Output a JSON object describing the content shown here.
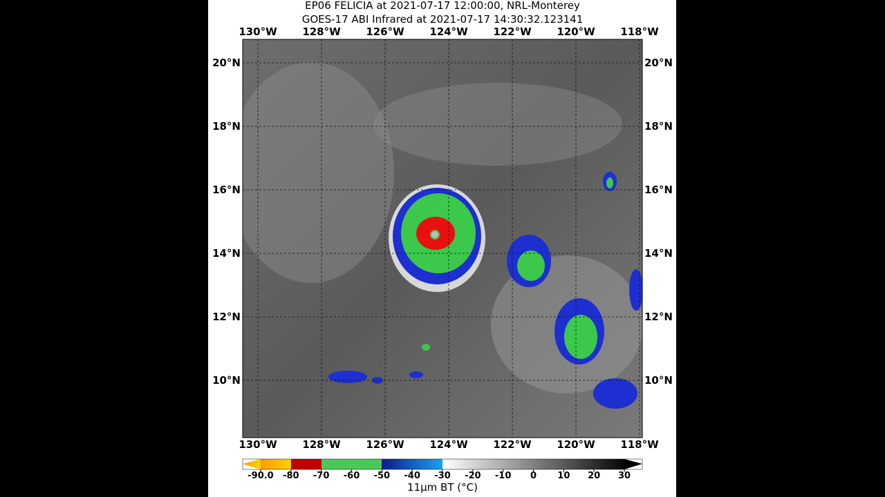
{
  "title": [
    "EP06 FELICIA at 2021-07-17 12:00:00, NRL-Monterey",
    "GOES-17 ABI Infrared at 2021-07-17 14:30:32.123141"
  ],
  "lon_labels": [
    "130°W",
    "128°W",
    "126°W",
    "124°W",
    "122°W",
    "120°W",
    "118°W"
  ],
  "lat_labels": [
    "20°N",
    "18°N",
    "16°N",
    "14°N",
    "12°N",
    "10°N"
  ],
  "colorbar": {
    "label": "11μm BT (°C)",
    "ticks": [
      {
        "value": -90,
        "label": "-90.0"
      },
      -80,
      -70,
      -60,
      -50,
      -40,
      -30,
      -20,
      -10,
      0,
      10,
      20,
      30
    ]
  }
}
